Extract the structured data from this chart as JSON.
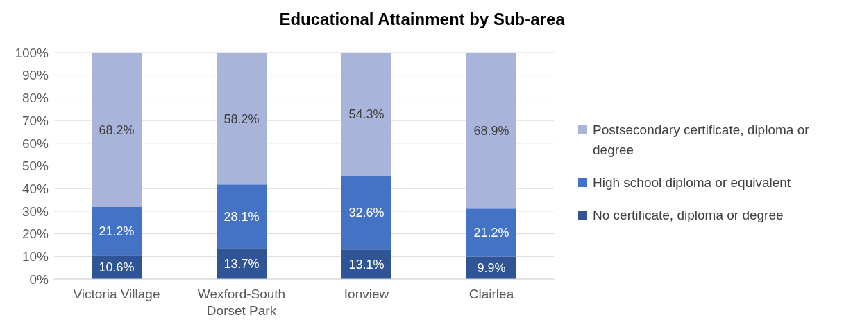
{
  "chart_data": {
    "type": "bar",
    "title": "Educational Attainment by Sub-area",
    "categories": [
      "Victoria Village",
      "Wexford-South Dorset Park",
      "Ionview",
      "Clairlea"
    ],
    "stacked": true,
    "series": [
      {
        "name": "No certificate, diploma or degree",
        "color": "#2f5597",
        "values": [
          10.6,
          13.7,
          13.1,
          9.9
        ],
        "value_labels": [
          "10.6%",
          "13.7%",
          "13.1%",
          "9.9%"
        ]
      },
      {
        "name": "High school diploma or equivalent",
        "color": "#4472c4",
        "values": [
          21.2,
          28.1,
          32.6,
          21.2
        ],
        "value_labels": [
          "21.2%",
          "28.1%",
          "32.6%",
          "21.2%"
        ]
      },
      {
        "name": "Postsecondary certificate, diploma or degree",
        "color": "#a9b4db",
        "values": [
          68.2,
          58.2,
          54.3,
          68.9
        ],
        "value_labels": [
          "68.2%",
          "58.2%",
          "54.3%",
          "68.9%"
        ]
      }
    ],
    "ylim": [
      0,
      100
    ],
    "yticks": [
      {
        "value": 0,
        "label": "0%"
      },
      {
        "value": 10,
        "label": "10%"
      },
      {
        "value": 20,
        "label": "20%"
      },
      {
        "value": 30,
        "label": "30%"
      },
      {
        "value": 40,
        "label": "40%"
      },
      {
        "value": 50,
        "label": "50%"
      },
      {
        "value": 60,
        "label": "60%"
      },
      {
        "value": 70,
        "label": "70%"
      },
      {
        "value": 80,
        "label": "80%"
      },
      {
        "value": 90,
        "label": "90%"
      },
      {
        "value": 100,
        "label": "100%"
      }
    ],
    "grid": "y",
    "legend": "right"
  }
}
